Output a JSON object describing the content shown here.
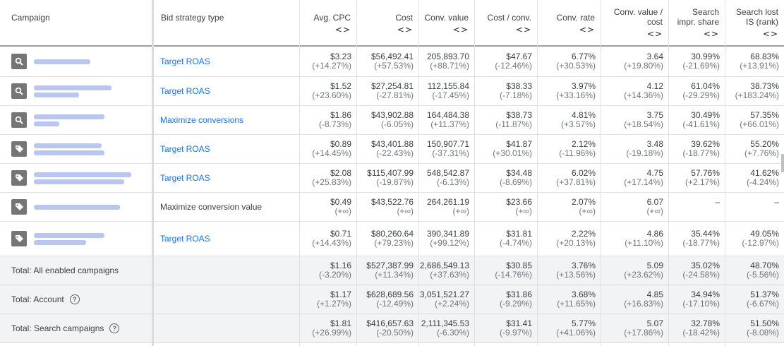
{
  "header": {
    "campaign": "Campaign",
    "bid_strategy": "Bid strategy type",
    "avg_cpc": "Avg. CPC",
    "cost": "Cost",
    "conv_value": "Conv. value",
    "cost_conv": "Cost / conv.",
    "conv_rate": "Conv. rate",
    "cv_cost_1": "Conv. value /",
    "cv_cost_2": "cost",
    "search_is_1": "Search",
    "search_is_2": "impr. share",
    "lost_is_1": "Search lost",
    "lost_is_2": "IS (rank)",
    "sort_glyph": "<>"
  },
  "rows": [
    {
      "icon": "search-icon",
      "strategy": "Target ROAS",
      "link": true,
      "cpc": "$3.23",
      "cpc_d": "(+14.27%)",
      "cost": "$56,492.41",
      "cost_d": "(+57.53%)",
      "cv": "205,893.70",
      "cv_d": "(+88.71%)",
      "cpc2": "$47.67",
      "cpc2_d": "(-12.46%)",
      "rate": "6.77%",
      "rate_d": "(+30.53%)",
      "roas": "3.64",
      "roas_d": "(+19.80%)",
      "is": "30.99%",
      "is_d": "(-21.69%)",
      "lost": "68.83%",
      "lost_d": "(+13.91%)"
    },
    {
      "icon": "search-icon",
      "strategy": "Target ROAS",
      "link": true,
      "cpc": "$1.52",
      "cpc_d": "(+23.60%)",
      "cost": "$27,254.81",
      "cost_d": "(-27.81%)",
      "cv": "112,155.84",
      "cv_d": "(-17.45%)",
      "cpc2": "$38.33",
      "cpc2_d": "(-7.18%)",
      "rate": "3.97%",
      "rate_d": "(+33.16%)",
      "roas": "4.12",
      "roas_d": "(+14.36%)",
      "is": "61.04%",
      "is_d": "(-29.29%)",
      "lost": "38.73%",
      "lost_d": "(+183.24%)"
    },
    {
      "icon": "search-icon",
      "strategy": "Maximize conversions",
      "link": true,
      "cpc": "$1.86",
      "cpc_d": "(-8.73%)",
      "cost": "$43,902.88",
      "cost_d": "(-6.05%)",
      "cv": "164,484.38",
      "cv_d": "(+11.37%)",
      "cpc2": "$38.73",
      "cpc2_d": "(-11.87%)",
      "rate": "4.81%",
      "rate_d": "(+3.57%)",
      "roas": "3.75",
      "roas_d": "(+18.54%)",
      "is": "30.49%",
      "is_d": "(-41.61%)",
      "lost": "57.35%",
      "lost_d": "(+66.01%)"
    },
    {
      "icon": "tag-icon",
      "strategy": "Target ROAS",
      "link": true,
      "cpc": "$0.89",
      "cpc_d": "(+14.45%)",
      "cost": "$43,401.88",
      "cost_d": "(-22.43%)",
      "cv": "150,907.71",
      "cv_d": "(-37.31%)",
      "cpc2": "$41.87",
      "cpc2_d": "(+30.01%)",
      "rate": "2.12%",
      "rate_d": "(-11.96%)",
      "roas": "3.48",
      "roas_d": "(-19.18%)",
      "is": "39.62%",
      "is_d": "(-18.77%)",
      "lost": "55.20%",
      "lost_d": "(+7.76%)"
    },
    {
      "icon": "tag-icon",
      "strategy": "Target ROAS",
      "link": true,
      "cpc": "$2.08",
      "cpc_d": "(+25.83%)",
      "cost": "$115,407.99",
      "cost_d": "(-19.87%)",
      "cv": "548,542.87",
      "cv_d": "(-6.13%)",
      "cpc2": "$34.48",
      "cpc2_d": "(-8.69%)",
      "rate": "6.02%",
      "rate_d": "(+37.81%)",
      "roas": "4.75",
      "roas_d": "(+17.14%)",
      "is": "57.76%",
      "is_d": "(+2.17%)",
      "lost": "41.62%",
      "lost_d": "(-4.24%)"
    },
    {
      "icon": "tag-icon",
      "strategy": "Maximize conversion value",
      "link": false,
      "cpc": "$0.49",
      "cpc_d": "(+∞)",
      "cost": "$43,522.76",
      "cost_d": "(+∞)",
      "cv": "264,261.19",
      "cv_d": "(+∞)",
      "cpc2": "$23.66",
      "cpc2_d": "(+∞)",
      "rate": "2.07%",
      "rate_d": "(+∞)",
      "roas": "6.07",
      "roas_d": "(+∞)",
      "is": "–",
      "is_d": "",
      "lost": "–",
      "lost_d": ""
    },
    {
      "icon": "tag-icon",
      "strategy": "Target ROAS",
      "link": true,
      "cpc": "$0.71",
      "cpc_d": "(+14.43%)",
      "cost": "$80,260.64",
      "cost_d": "(+79.23%)",
      "cv": "390,341.89",
      "cv_d": "(+99.12%)",
      "cpc2": "$31.81",
      "cpc2_d": "(-4.74%)",
      "rate": "2.22%",
      "rate_d": "(+20.13%)",
      "roas": "4.86",
      "roas_d": "(+11.10%)",
      "is": "35.44%",
      "is_d": "(-18.77%)",
      "lost": "49.05%",
      "lost_d": "(-12.97%)"
    }
  ],
  "totals": [
    {
      "label": "Total: All enabled campaigns",
      "help": false,
      "cpc": "$1.16",
      "cpc_d": "(-3.20%)",
      "cost": "$527,387.99",
      "cost_d": "(+11.34%)",
      "cv": "2,686,549.13",
      "cv_d": "(+37.63%)",
      "cpc2": "$30.85",
      "cpc2_d": "(-14.76%)",
      "rate": "3.76%",
      "rate_d": "(+13.56%)",
      "roas": "5.09",
      "roas_d": "(+23.62%)",
      "is": "35.02%",
      "is_d": "(-24.58%)",
      "lost": "48.70%",
      "lost_d": "(-5.56%)"
    },
    {
      "label": "Total: Account",
      "help": true,
      "cpc": "$1.17",
      "cpc_d": "(+1.27%)",
      "cost": "$628,689.56",
      "cost_d": "(-12.49%)",
      "cv": "3,051,521.27",
      "cv_d": "(+2.24%)",
      "cpc2": "$31.86",
      "cpc2_d": "(-9.29%)",
      "rate": "3.68%",
      "rate_d": "(+11.65%)",
      "roas": "4.85",
      "roas_d": "(+16.83%)",
      "is": "34.94%",
      "is_d": "(-17.10%)",
      "lost": "51.37%",
      "lost_d": "(-6.67%)"
    },
    {
      "label": "Total: Search campaigns",
      "help": true,
      "cpc": "$1.81",
      "cpc_d": "(+26.99%)",
      "cost": "$416,657.63",
      "cost_d": "(-20.50%)",
      "cv": "2,111,345.53",
      "cv_d": "(-6.30%)",
      "cpc2": "$31.41",
      "cpc2_d": "(-9.97%)",
      "rate": "5.77%",
      "rate_d": "(+41.06%)",
      "roas": "5.07",
      "roas_d": "(+17.86%)",
      "is": "32.78%",
      "is_d": "(-18.42%)",
      "lost": "51.50%",
      "lost_d": "(-8.08%)"
    }
  ],
  "help_glyph": "?",
  "colors": {
    "link": "#1a73e8",
    "icon_bg": "#757575",
    "total_bg": "#f1f3f4",
    "redacted": "#b9c6ee"
  }
}
